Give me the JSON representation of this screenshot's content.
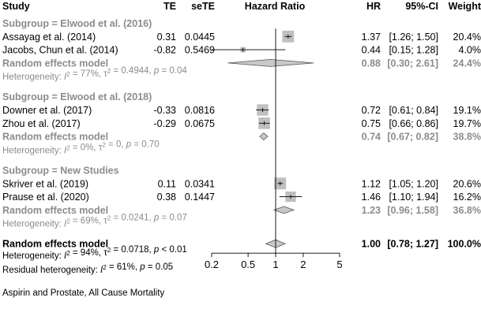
{
  "headers": {
    "study": "Study",
    "te": "TE",
    "sete": "seTE",
    "hr_plot": "Hazard Ratio",
    "hr": "HR",
    "ci": "95%-CI",
    "weight": "Weight"
  },
  "footer_caption": "Aspirin and Prostate, All Cause Mortality",
  "colors": {
    "text": "#000000",
    "subgroup_text": "#8c8c8c",
    "square": "#bfbfbf",
    "diamond_fill": "#c8c8c8"
  },
  "chart_data": {
    "type": "forest",
    "xlabel": "Hazard Ratio",
    "xscale": "log",
    "xlim": [
      0.2,
      5
    ],
    "xticks": [
      "0.2",
      "0.5",
      "1",
      "2",
      "5"
    ],
    "reference_line": 1,
    "rows": [
      {
        "kind": "subgroup",
        "text": "Subgroup = Elwood et al. (2016)"
      },
      {
        "kind": "study",
        "label": "Assayag et al. (2014)",
        "te": "0.31",
        "sete": "0.0445",
        "hr": 1.37,
        "lo": 1.26,
        "hi": 1.5,
        "hr_text": "1.37",
        "ci_text": "[1.26; 1.50]",
        "weight": "20.4%"
      },
      {
        "kind": "study",
        "label": "Jacobs, Chun et al. (2014)",
        "te": "-0.82",
        "sete": "0.5469",
        "hr": 0.44,
        "lo": 0.15,
        "hi": 1.28,
        "hr_text": "0.44",
        "ci_text": "[0.15; 1.28]",
        "weight": "4.0%"
      },
      {
        "kind": "subgroup_pool",
        "label": "Random effects model",
        "hr": 0.88,
        "lo": 0.3,
        "hi": 2.61,
        "hr_text": "0.88",
        "ci_text": "[0.30; 2.61]",
        "weight": "24.4%"
      },
      {
        "kind": "heterogeneity",
        "text": "Heterogeneity: I² = 77%, τ² = 0.4944, p = 0.04"
      },
      {
        "kind": "blank"
      },
      {
        "kind": "subgroup",
        "text": "Subgroup = Elwood et al. (2018)"
      },
      {
        "kind": "study",
        "label": "Downer et al. (2017)",
        "te": "-0.33",
        "sete": "0.0816",
        "hr": 0.72,
        "lo": 0.61,
        "hi": 0.84,
        "hr_text": "0.72",
        "ci_text": "[0.61; 0.84]",
        "weight": "19.1%"
      },
      {
        "kind": "study",
        "label": "Zhou et al. (2017)",
        "te": "-0.29",
        "sete": "0.0675",
        "hr": 0.75,
        "lo": 0.66,
        "hi": 0.86,
        "hr_text": "0.75",
        "ci_text": "[0.66; 0.86]",
        "weight": "19.7%"
      },
      {
        "kind": "subgroup_pool",
        "label": "Random effects model",
        "hr": 0.74,
        "lo": 0.67,
        "hi": 0.82,
        "hr_text": "0.74",
        "ci_text": "[0.67; 0.82]",
        "weight": "38.8%"
      },
      {
        "kind": "heterogeneity",
        "text": "Heterogeneity: I² = 0%, τ² = 0, p = 0.70"
      },
      {
        "kind": "blank"
      },
      {
        "kind": "subgroup",
        "text": "Subgroup = New Studies"
      },
      {
        "kind": "study",
        "label": "Skriver et al. (2019)",
        "te": "0.11",
        "sete": "0.0341",
        "hr": 1.12,
        "lo": 1.05,
        "hi": 1.2,
        "hr_text": "1.12",
        "ci_text": "[1.05; 1.20]",
        "weight": "20.6%"
      },
      {
        "kind": "study",
        "label": "Prause et al. (2020)",
        "te": "0.38",
        "sete": "0.1447",
        "hr": 1.46,
        "lo": 1.1,
        "hi": 1.94,
        "hr_text": "1.46",
        "ci_text": "[1.10; 1.94]",
        "weight": "16.2%"
      },
      {
        "kind": "subgroup_pool",
        "label": "Random effects model",
        "hr": 1.23,
        "lo": 0.96,
        "hi": 1.58,
        "hr_text": "1.23",
        "ci_text": "[0.96; 1.58]",
        "weight": "36.8%"
      },
      {
        "kind": "heterogeneity",
        "text": "Heterogeneity: I² = 69%, τ² = 0.0241, p = 0.07"
      },
      {
        "kind": "blank"
      },
      {
        "kind": "overall",
        "label": "Random effects model",
        "hr": 1.0,
        "lo": 0.78,
        "hi": 1.27,
        "hr_text": "1.00",
        "ci_text": "[0.78; 1.27]",
        "weight": "100.0%"
      }
    ],
    "overall_heterogeneity": "Heterogeneity: I² = 94%, τ² = 0.0718, p < 0.01",
    "residual_heterogeneity": "Residual heterogeneity: I² = 61%, p = 0.05"
  }
}
